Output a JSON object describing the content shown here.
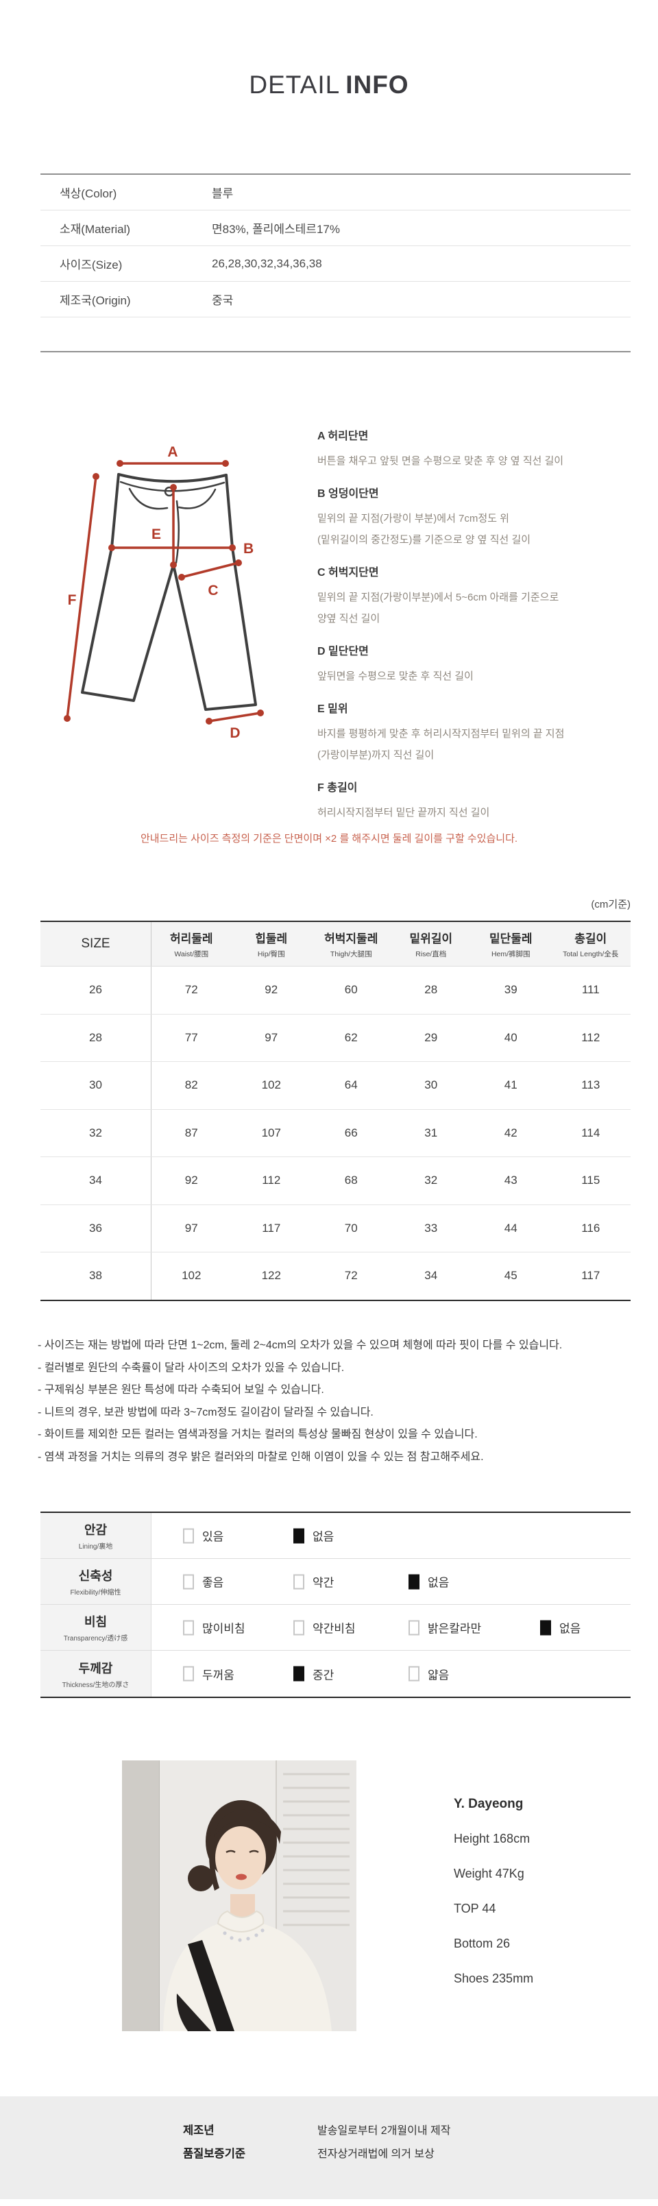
{
  "title": {
    "thin": "DETAIL",
    "bold": "INFO"
  },
  "info_table": {
    "rows": [
      {
        "label": "색상(Color)",
        "value": "블루"
      },
      {
        "label": "소재(Material)",
        "value": "면83%, 폴리에스테르17%"
      },
      {
        "label": "사이즈(Size)",
        "value": "26,28,30,32,34,36,38"
      },
      {
        "label": "제조국(Origin)",
        "value": "중국"
      }
    ]
  },
  "measure": {
    "items": [
      {
        "letter": "A",
        "title": "A 허리단면",
        "lines": [
          "버튼을 채우고 앞뒷 면을 수평으로 맞춘 후 양 옆 직선 길이"
        ]
      },
      {
        "letter": "B",
        "title": "B 엉덩이단면",
        "lines": [
          "밑위의 끝 지점(가랑이 부분)에서 7cm정도 위",
          "(밑위길이의 중간정도)를 기준으로 양 옆 직선 길이"
        ]
      },
      {
        "letter": "C",
        "title": "C 허벅지단면",
        "lines": [
          "밑위의 끝 지점(가랑이부분)에서 5~6cm 아래를 기준으로",
          "양옆 직선 길이"
        ]
      },
      {
        "letter": "D",
        "title": "D 밑단단면",
        "lines": [
          "앞뒤면을 수평으로 맞춘 후 직선 길이"
        ]
      },
      {
        "letter": "E",
        "title": "E 밑위",
        "lines": [
          "바지를 평평하게 맞춘 후 허리시작지점부터 밑위의 끝 지점",
          "(가랑이부분)까지 직선 길이"
        ]
      },
      {
        "letter": "F",
        "title": "F 총길이",
        "lines": [
          "허리시작지점부터 밑단 끝까지 직선 길이"
        ]
      }
    ],
    "note": "안내드리는 사이즈 측정의 기준은 단면이며 ×2 를 해주시면 둘레 길이를 구할 수있습니다."
  },
  "size_table": {
    "unit_note": "(cm기준)",
    "size_header": "SIZE",
    "columns": [
      {
        "main": "허리둘레",
        "sub": "Waist/腰围"
      },
      {
        "main": "힙둘레",
        "sub": "Hip/臀围"
      },
      {
        "main": "허벅지둘레",
        "sub": "Thigh/大腿围"
      },
      {
        "main": "밑위길이",
        "sub": "Rise/直档"
      },
      {
        "main": "밑단둘레",
        "sub": "Hem/裤脚围"
      },
      {
        "main": "총길이",
        "sub": "Total Length/全長"
      }
    ],
    "rows": [
      {
        "size": "26",
        "values": [
          72,
          92,
          60,
          28,
          39,
          111
        ]
      },
      {
        "size": "28",
        "values": [
          77,
          97,
          62,
          29,
          40,
          112
        ]
      },
      {
        "size": "30",
        "values": [
          82,
          102,
          64,
          30,
          41,
          113
        ]
      },
      {
        "size": "32",
        "values": [
          87,
          107,
          66,
          31,
          42,
          114
        ]
      },
      {
        "size": "34",
        "values": [
          92,
          112,
          68,
          32,
          43,
          115
        ]
      },
      {
        "size": "36",
        "values": [
          97,
          117,
          70,
          33,
          44,
          116
        ]
      },
      {
        "size": "38",
        "values": [
          102,
          122,
          72,
          34,
          45,
          117
        ]
      }
    ]
  },
  "notes": [
    "- 사이즈는 재는 방법에 따라 단면 1~2cm, 둘레 2~4cm의 오차가 있을 수 있으며 체형에 따라 핏이 다를 수 있습니다.",
    "- 컬러별로 원단의 수축률이 달라 사이즈의 오차가 있을 수 있습니다.",
    "- 구제워싱 부분은 원단 특성에 따라 수축되어 보일 수 있습니다.",
    "- 니트의 경우, 보관 방법에 따라 3~7cm정도 길이감이 달라질 수 있습니다.",
    "- 화이트를 제외한 모든 컬러는 염색과정을 거치는 컬러의 특성상 물빠짐 현상이 있을 수 있습니다.",
    "- 염색 과정을 거치는 의류의 경우 밝은 컬러와의 마찰로 인해 이염이 있을 수 있는 점 참고해주세요."
  ],
  "attributes": {
    "rows": [
      {
        "main": "안감",
        "sub": "Lining/裏地",
        "options": [
          {
            "label": "있음",
            "checked": false
          },
          {
            "label": "없음",
            "checked": true
          }
        ]
      },
      {
        "main": "신축성",
        "sub": "Flexibility/伸縮性",
        "options": [
          {
            "label": "좋음",
            "checked": false
          },
          {
            "label": "약간",
            "checked": false
          },
          {
            "label": "없음",
            "checked": true
          }
        ]
      },
      {
        "main": "비침",
        "sub": "Transparency/透け感",
        "options": [
          {
            "label": "많이비침",
            "checked": false
          },
          {
            "label": "약간비침",
            "checked": false
          },
          {
            "label": "밝은칼라만",
            "checked": false
          },
          {
            "label": "없음",
            "checked": true
          }
        ]
      },
      {
        "main": "두께감",
        "sub": "Thickness/生地の厚さ",
        "options": [
          {
            "label": "두꺼움",
            "checked": false
          },
          {
            "label": "중간",
            "checked": true
          },
          {
            "label": "얇음",
            "checked": false
          }
        ]
      }
    ]
  },
  "model": {
    "name": "Y. Dayeong",
    "specs": [
      "Height 168cm",
      "Weight 47Kg",
      "TOP 44",
      "Bottom 26",
      "Shoes 235mm"
    ]
  },
  "footer": {
    "rows": [
      {
        "label": "제조년",
        "value": "발송일로부터 2개월이내 제작"
      },
      {
        "label": "품질보증기준",
        "value": "전자상거래법에 의거 보상"
      }
    ]
  },
  "colors": {
    "accent_red": "#b23b2a",
    "note_red": "#c7604c",
    "table_header_bg": "#f4f4f4",
    "footer_bg": "#ededed"
  }
}
